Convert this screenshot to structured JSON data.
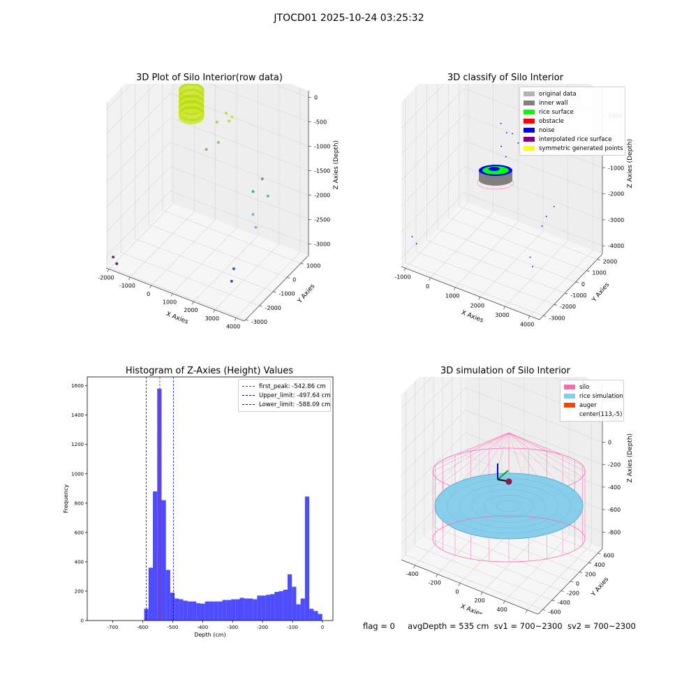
{
  "suptitle": "JTOCD01 2025-10-24 03:25:32",
  "status": {
    "flag": "flag = 0",
    "avg_depth": "avgDepth = 535 cm",
    "sv1": "sv1 = 700~2300",
    "sv2": "sv2 = 700~2300"
  },
  "chart_data": [
    {
      "type": "scatter",
      "title": "3D Plot of Silo Interior(row data)",
      "xlabel": "X Axies",
      "ylabel": "Y Axies",
      "zlabel": "Z Axies (Depth)",
      "x_ticks": [
        "-2000",
        "-1000",
        "0",
        "1000",
        "2000",
        "3000",
        "4000"
      ],
      "y_ticks": [
        "-3000",
        "-2000",
        "-1000",
        "0",
        "1000"
      ],
      "z_ticks": [
        "-3000",
        "-2500",
        "-2000",
        "-1500",
        "-1000",
        "-500",
        "0"
      ],
      "xlim": [
        -2000,
        4500
      ],
      "ylim": [
        -3000,
        1500
      ],
      "zlim": [
        -3300,
        100
      ],
      "cluster": {
        "x_center": 0,
        "y_center": 0,
        "radius": 500,
        "z": -500,
        "color": "#c8e21a"
      },
      "points": [
        {
          "x": 1300,
          "y": 500,
          "z": -600,
          "color": "#bfe03a"
        },
        {
          "x": 1500,
          "y": 400,
          "z": -700,
          "color": "#b4dd3e"
        },
        {
          "x": 1700,
          "y": 300,
          "z": -550,
          "color": "#c4e23a"
        },
        {
          "x": 800,
          "y": 600,
          "z": -900,
          "color": "#a2d94a"
        },
        {
          "x": 1200,
          "y": 100,
          "z": -1100,
          "color": "#8ccf5c"
        },
        {
          "x": 700,
          "y": 0,
          "z": -1300,
          "color": "#6cc070"
        },
        {
          "x": 3600,
          "y": -400,
          "z": -1300,
          "color": "#48b278"
        },
        {
          "x": 3300,
          "y": -600,
          "z": -1550,
          "color": "#3fae7e"
        },
        {
          "x": 3800,
          "y": -300,
          "z": -1650,
          "color": "#62b9a2"
        },
        {
          "x": 3500,
          "y": -900,
          "z": -1900,
          "color": "#8ab0c8"
        },
        {
          "x": 3700,
          "y": -1000,
          "z": -2100,
          "color": "#9aa8d2"
        },
        {
          "x": 3200,
          "y": -1800,
          "z": -2800,
          "color": "#3563a8"
        },
        {
          "x": 3300,
          "y": -2100,
          "z": -2950,
          "color": "#2e5a9c"
        },
        {
          "x": -1800,
          "y": -2800,
          "z": -3100,
          "color": "#6a2f8a"
        },
        {
          "x": -1700,
          "y": -2700,
          "z": -3250,
          "color": "#5a2578"
        }
      ]
    },
    {
      "type": "scatter",
      "title": "3D classify of Silo Interior",
      "xlabel": "X Axies",
      "ylabel": "Y Axies",
      "zlabel": "Z Axies (Depth)",
      "x_ticks": [
        "-1000",
        "0",
        "1000",
        "2000",
        "3000",
        "4000"
      ],
      "y_ticks": [
        "-3000",
        "-2000",
        "-1000",
        "0",
        "1000",
        "2000"
      ],
      "z_ticks": [
        "-4000",
        "-3000",
        "-2000",
        "-1000",
        "0",
        "1000"
      ],
      "xlim": [
        -1600,
        4500
      ],
      "ylim": [
        -3500,
        2500
      ],
      "zlim": [
        -4500,
        1400
      ],
      "legend": [
        {
          "label": "original data",
          "color": "#b3b3b3"
        },
        {
          "label": "inner wall",
          "color": "#808080"
        },
        {
          "label": "rice surface",
          "color": "#00ff00"
        },
        {
          "label": "obstacle",
          "color": "#ff0000"
        },
        {
          "label": "noise",
          "color": "#0000ff"
        },
        {
          "label": "interpolated rice surface",
          "color": "#800080"
        },
        {
          "label": "symmetric generated points",
          "color": "#ffff00"
        }
      ],
      "noise_points": [
        {
          "x": 900,
          "y": 600,
          "z": -200
        },
        {
          "x": 1200,
          "y": 500,
          "z": -400
        },
        {
          "x": 1500,
          "y": 400,
          "z": -300
        },
        {
          "x": 1800,
          "y": 300,
          "z": -500
        },
        {
          "x": 1100,
          "y": 200,
          "z": -800
        },
        {
          "x": 2000,
          "y": 100,
          "z": -700
        },
        {
          "x": 1400,
          "y": 0,
          "z": -1000
        },
        {
          "x": 3800,
          "y": -600,
          "z": -1800
        },
        {
          "x": 3600,
          "y": -900,
          "z": -2100
        },
        {
          "x": 3500,
          "y": -1100,
          "z": -2400
        },
        {
          "x": 3300,
          "y": -1800,
          "z": -3300
        },
        {
          "x": 3500,
          "y": -2000,
          "z": -3500
        },
        {
          "x": -1400,
          "y": -2900,
          "z": -3600
        },
        {
          "x": -1300,
          "y": -2700,
          "z": -3900
        }
      ]
    },
    {
      "type": "bar",
      "title": "Histogram of Z-Axies (Height) Values",
      "xlabel": "Depth (cm)",
      "ylabel": "Frequency",
      "xlim": [
        -785,
        35
      ],
      "ylim": [
        0,
        1660
      ],
      "x_ticks": [
        -700,
        -600,
        -500,
        -400,
        -300,
        -200,
        -100,
        0
      ],
      "y_ticks": [
        0,
        200,
        400,
        600,
        800,
        1000,
        1200,
        1400,
        1600
      ],
      "bin_start": -595,
      "bin_width": 14.5,
      "values": [
        80,
        360,
        880,
        1580,
        820,
        345,
        190,
        150,
        145,
        135,
        130,
        130,
        118,
        115,
        130,
        130,
        130,
        130,
        140,
        140,
        145,
        145,
        155,
        150,
        150,
        145,
        170,
        170,
        175,
        180,
        195,
        200,
        210,
        315,
        230,
        110,
        150,
        845,
        80,
        65,
        45,
        0
      ],
      "bar_color": "#4d4dff",
      "lines": [
        {
          "label": "first_peak: -542.86 cm",
          "x": -542.86,
          "color": "#ff0000"
        },
        {
          "label": "Upper_limit: -497.64 cm",
          "x": -497.64,
          "color": "#0000cc"
        },
        {
          "label": "Lower_limit: -588.09 cm",
          "x": -588.09,
          "color": "#0000cc"
        }
      ]
    },
    {
      "type": "scatter",
      "title": "3D simulation of Silo Interior",
      "xlabel": "X Axies",
      "ylabel": "Y Axies",
      "zlabel": "Z Axies (Depth)",
      "x_ticks": [
        "-400",
        "-200",
        "0",
        "200",
        "400",
        "600"
      ],
      "y_ticks": [
        "-600",
        "-400",
        "-200",
        "0",
        "200",
        "400",
        "600"
      ],
      "z_ticks": [
        "-800",
        "-600",
        "-400",
        "-200",
        "0",
        "200",
        "400"
      ],
      "xlim": [
        -550,
        700
      ],
      "ylim": [
        -700,
        700
      ],
      "zlim": [
        -900,
        450
      ],
      "legend": [
        {
          "label": "silo",
          "color": "#ff69b4"
        },
        {
          "label": "rice simulation",
          "color": "#87ceeb"
        },
        {
          "label": "auger",
          "color": "#ff4500"
        },
        {
          "label": "center(113,-5)",
          "color": ""
        }
      ],
      "silo": {
        "radius": 600,
        "z_top": 0,
        "z_bottom": -900
      },
      "rice": {
        "radius": 570,
        "z": -535
      },
      "auger_center": {
        "x": 113,
        "y": -5,
        "z": -150
      }
    }
  ]
}
